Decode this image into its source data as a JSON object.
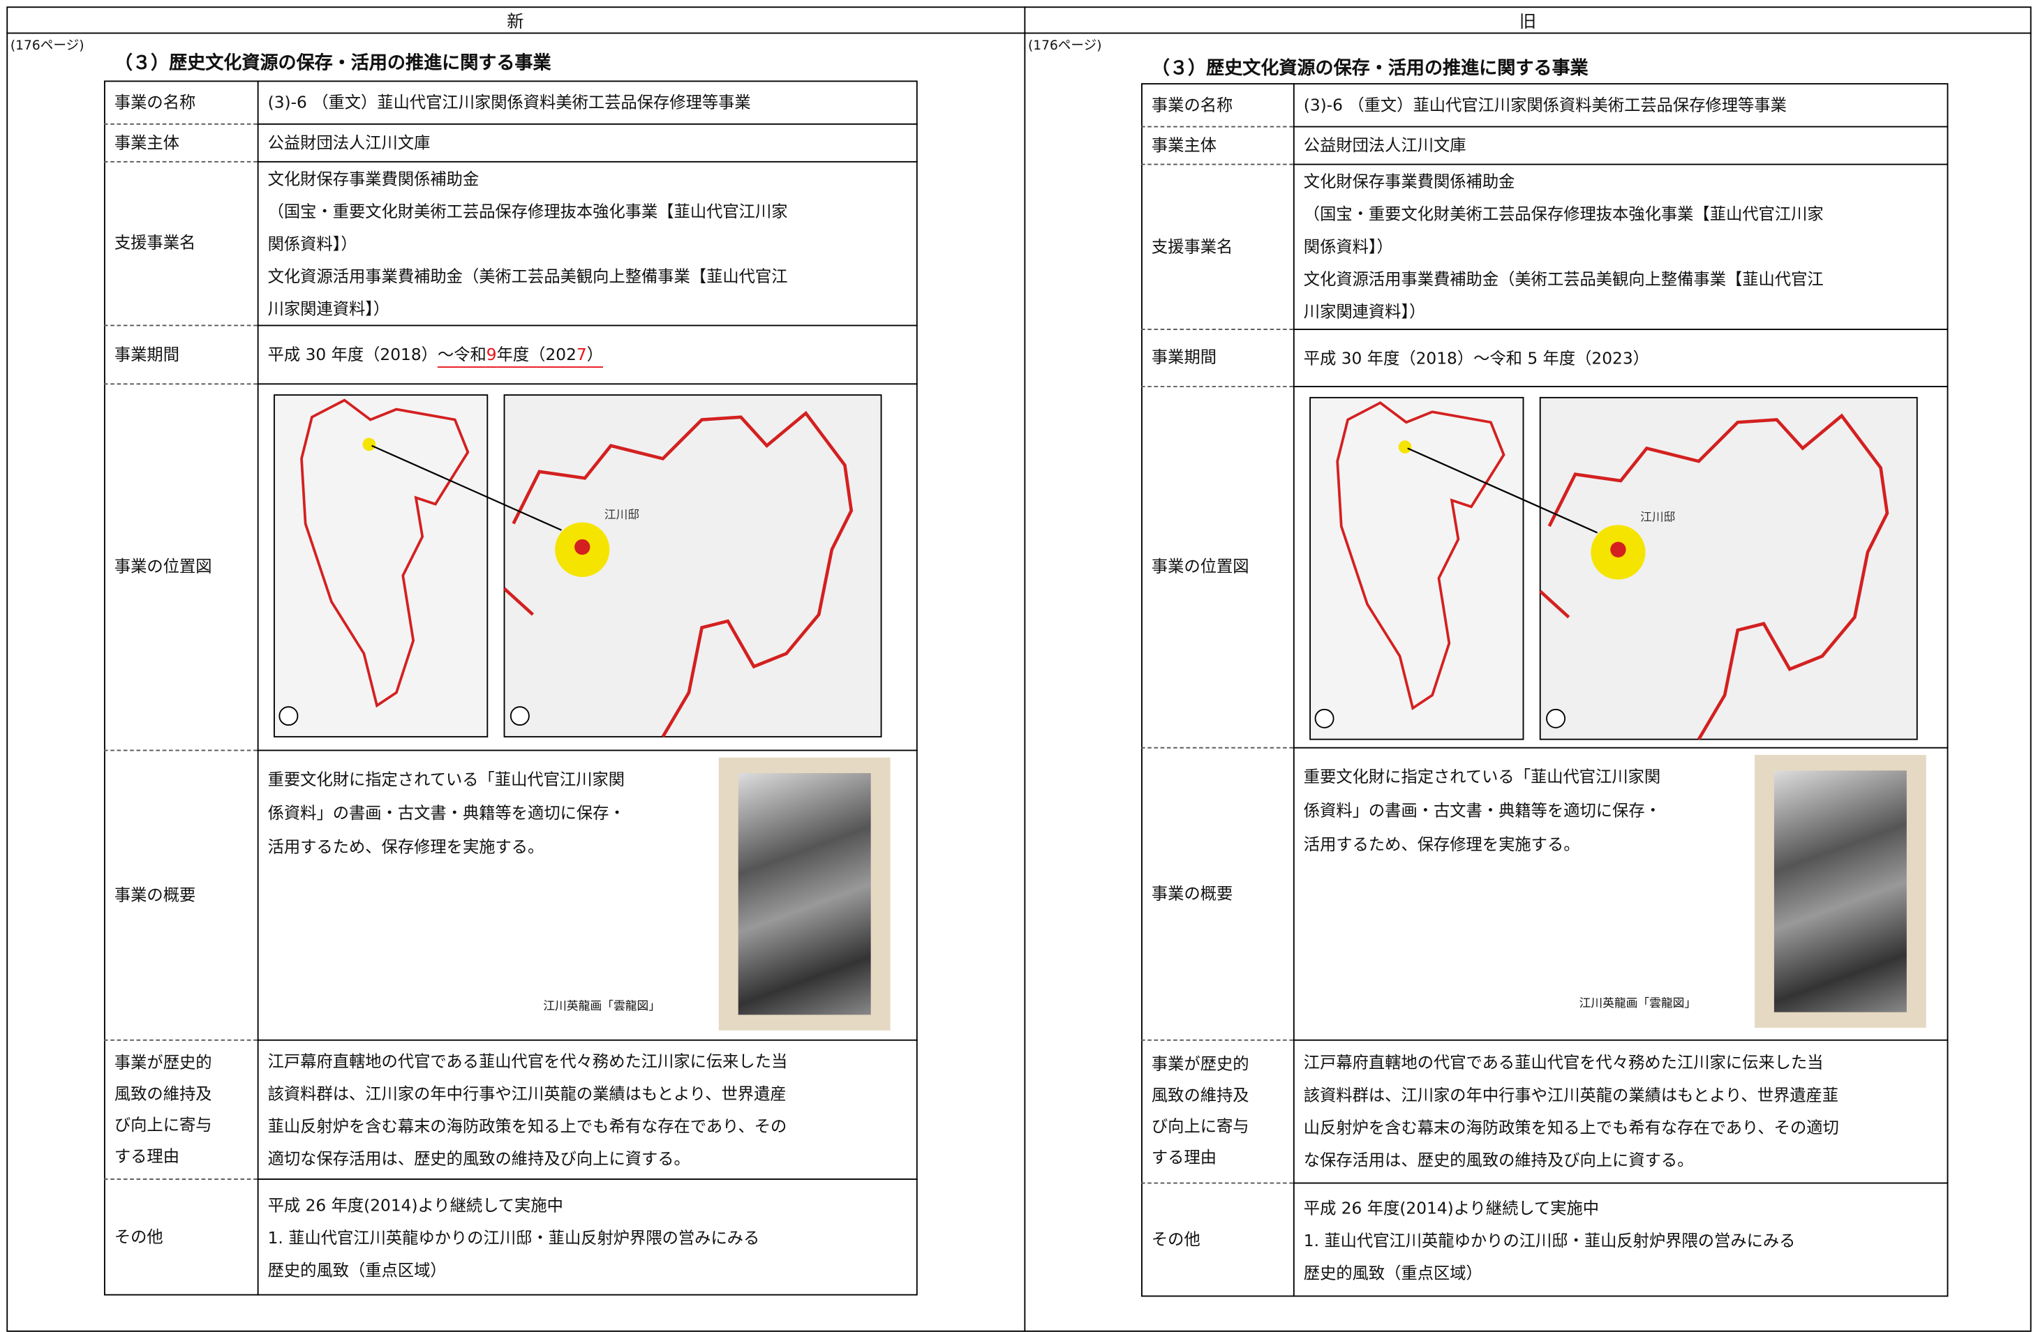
{
  "header": {
    "new": "新",
    "old": "旧"
  },
  "columns": [
    {
      "page_label": "(176ページ)",
      "section_title": "（３）歴史文化資源の保存・活用の推進に関する事業",
      "rows": [
        {
          "label": [
            "事業の名称"
          ],
          "lines": [
            "(3)-6 （重文）韮山代官江川家関係資料美術工芸品保存修理等事業"
          ]
        },
        {
          "label": [
            "事業主体"
          ],
          "lines": [
            "公益財団法人江川文庫"
          ]
        },
        {
          "label": [
            "支援事業名"
          ],
          "lines": [
            "文化財保存事業費関係補助金",
            "（国宝・重要文化財美術工芸品保存修理抜本強化事業【韮山代官江川家",
            "関係資料】）",
            "文化資源活用事業費補助金（美術工芸品美観向上整備事業【韮山代官江",
            "川家関連資料】）"
          ]
        },
        {
          "label": [
            "事業期間"
          ],
          "segments": [
            {
              "text": "平成 30 年度（2018）"
            },
            {
              "text": "～令和",
              "changed": true
            },
            {
              "text": "9",
              "changed": true,
              "color": "#e8141b"
            },
            {
              "text": "年度（202",
              "changed": true
            },
            {
              "text": "7",
              "changed": true,
              "color": "#e8141b"
            },
            {
              "text": "）",
              "changed": true
            }
          ]
        },
        {
          "label": [
            "事業の位置図"
          ],
          "map_label": "江川邸"
        },
        {
          "label": [
            "事業の概要"
          ],
          "lines": [
            "重要文化財に指定されている「韮山代官江川家関",
            "係資料」の書画・古文書・典籍等を適切に保存・",
            "活用するため、保存修理を実施する。"
          ],
          "caption": "江川英龍画「雲龍図」"
        },
        {
          "label": [
            "事業が歴史的",
            "風致の維持及",
            "び向上に寄与",
            "する理由"
          ],
          "lines": [
            "江戸幕府直轄地の代官である韮山代官を代々務めた江川家に伝来した当",
            "該資料群は、江川家の年中行事や江川英龍の業績はもとより、世界遺産",
            "韮山反射炉を含む幕末の海防政策を知る上でも希有な存在であり、その",
            "適切な保存活用は、歴史的風致の維持及び向上に資する。"
          ]
        },
        {
          "label": [
            "その他"
          ],
          "lines": [
            "平成 26 年度(2014)より継続して実施中",
            "1. 韮山代官江川英龍ゆかりの江川邸・韮山反射炉界隈の営みにみる",
            "歴史的風致（重点区域）"
          ]
        }
      ]
    },
    {
      "page_label": "(176ページ)",
      "section_title": "（３）歴史文化資源の保存・活用の推進に関する事業",
      "rows": [
        {
          "label": [
            "事業の名称"
          ],
          "lines": [
            "(3)-6 （重文）韮山代官江川家関係資料美術工芸品保存修理等事業"
          ]
        },
        {
          "label": [
            "事業主体"
          ],
          "lines": [
            "公益財団法人江川文庫"
          ]
        },
        {
          "label": [
            "支援事業名"
          ],
          "lines": [
            "文化財保存事業費関係補助金",
            "（国宝・重要文化財美術工芸品保存修理抜本強化事業【韮山代官江川家",
            "関係資料】）",
            "文化資源活用事業費補助金（美術工芸品美観向上整備事業【韮山代官江",
            "川家関連資料】）"
          ]
        },
        {
          "label": [
            "事業期間"
          ],
          "lines": [
            "平成 30 年度（2018）～令和 5 年度（2023）"
          ]
        },
        {
          "label": [
            "事業の位置図"
          ],
          "map_label": "江川邸"
        },
        {
          "label": [
            "事業の概要"
          ],
          "lines": [
            "重要文化財に指定されている「韮山代官江川家関",
            "係資料」の書画・古文書・典籍等を適切に保存・",
            "活用するため、保存修理を実施する。"
          ],
          "caption": "江川英龍画「雲龍図」"
        },
        {
          "label": [
            "事業が歴史的",
            "風致の維持及",
            "び向上に寄与",
            "する理由"
          ],
          "lines": [
            "江戸幕府直轄地の代官である韮山代官を代々務めた江川家に伝来した当",
            "該資料群は、江川家の年中行事や江川英龍の業績はもとより、世界遺産韮",
            "山反射炉を含む幕末の海防政策を知る上でも希有な存在であり、その適切",
            "な保存活用は、歴史的風致の維持及び向上に資する。"
          ]
        },
        {
          "label": [
            "その他"
          ],
          "lines": [
            "平成 26 年度(2014)より継続して実施中",
            "1. 韮山代官江川英龍ゆかりの江川邸・韮山反射炉界隈の営みにみる",
            "歴史的風致（重点区域）"
          ]
        }
      ]
    }
  ]
}
